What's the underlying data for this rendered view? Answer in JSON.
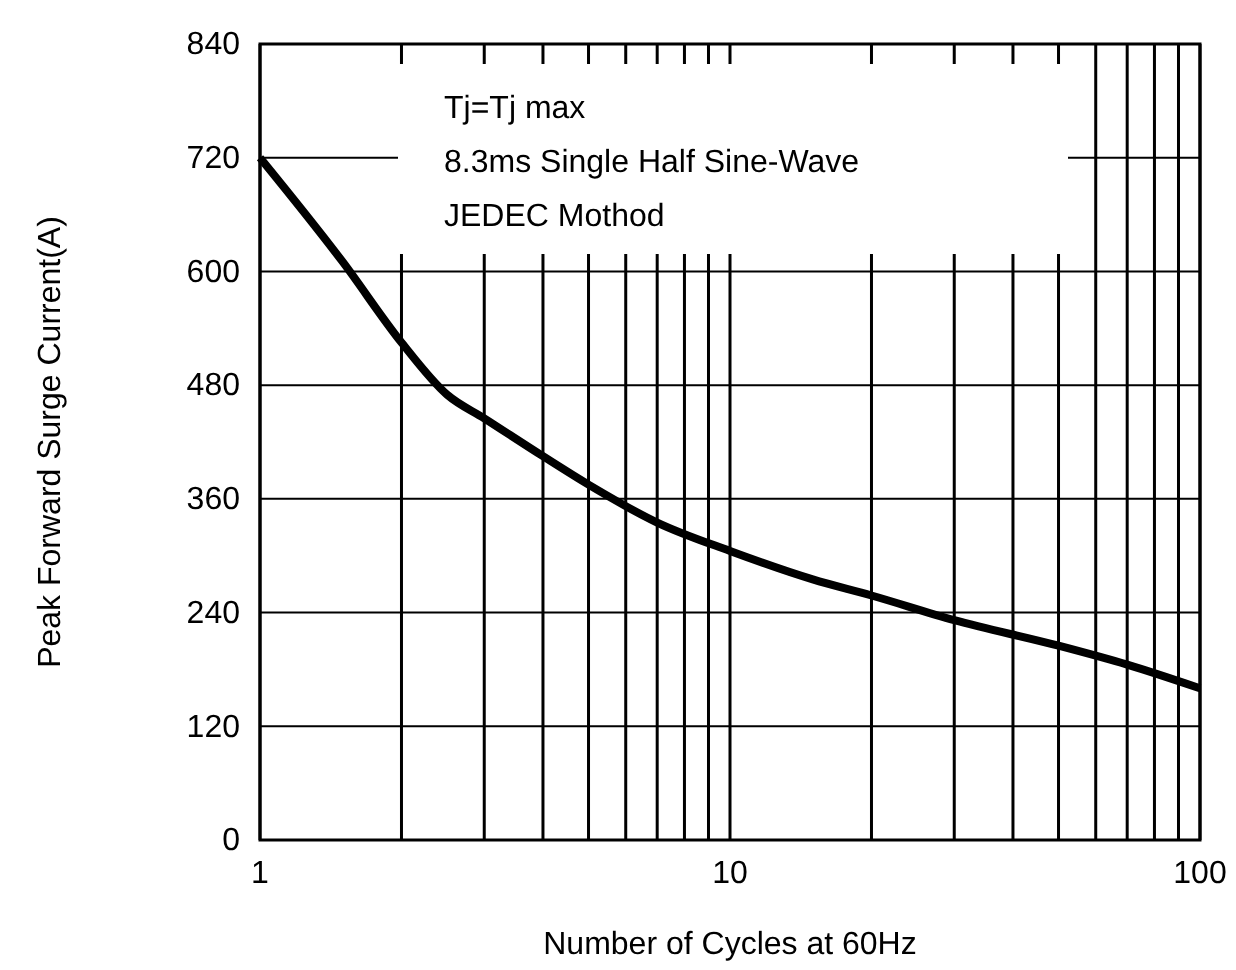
{
  "chart_data": {
    "type": "line",
    "xlabel": "Number of Cycles at 60Hz",
    "ylabel": "Peak  Forward Surge Current(A)",
    "annotations": [
      "Tj=Tj max",
      "8.3ms Single Half Sine-Wave",
      "JEDEC Mothod"
    ],
    "log": "x",
    "grid": true,
    "marker": "none",
    "line_style": "solid",
    "xlim": [
      1,
      100
    ],
    "ylim": [
      0,
      840
    ],
    "xticks": [
      1,
      {
        "value": 2,
        "label": null
      },
      {
        "value": 3,
        "label": null
      },
      {
        "value": 4,
        "label": null
      },
      {
        "value": 5,
        "label": null
      },
      {
        "value": 6,
        "label": null
      },
      {
        "value": 7,
        "label": null
      },
      {
        "value": 8,
        "label": null
      },
      {
        "value": 9,
        "label": null
      },
      10,
      {
        "value": 20,
        "label": null
      },
      {
        "value": 30,
        "label": null
      },
      {
        "value": 40,
        "label": null
      },
      {
        "value": 50,
        "label": null
      },
      {
        "value": 60,
        "label": null
      },
      {
        "value": 70,
        "label": null
      },
      {
        "value": 80,
        "label": null
      },
      {
        "value": 90,
        "label": null
      },
      100
    ],
    "yticks": [
      0,
      120,
      240,
      360,
      480,
      600,
      720,
      840
    ],
    "series": [
      {
        "color": "#000000",
        "x": [
          1,
          1.5,
          2,
          2.5,
          3,
          4,
          5,
          7,
          10,
          15,
          20,
          30,
          50,
          70,
          100
        ],
        "values": [
          720,
          610,
          525,
          470,
          445,
          405,
          375,
          335,
          305,
          275,
          258,
          232,
          205,
          185,
          160
        ]
      }
    ]
  }
}
